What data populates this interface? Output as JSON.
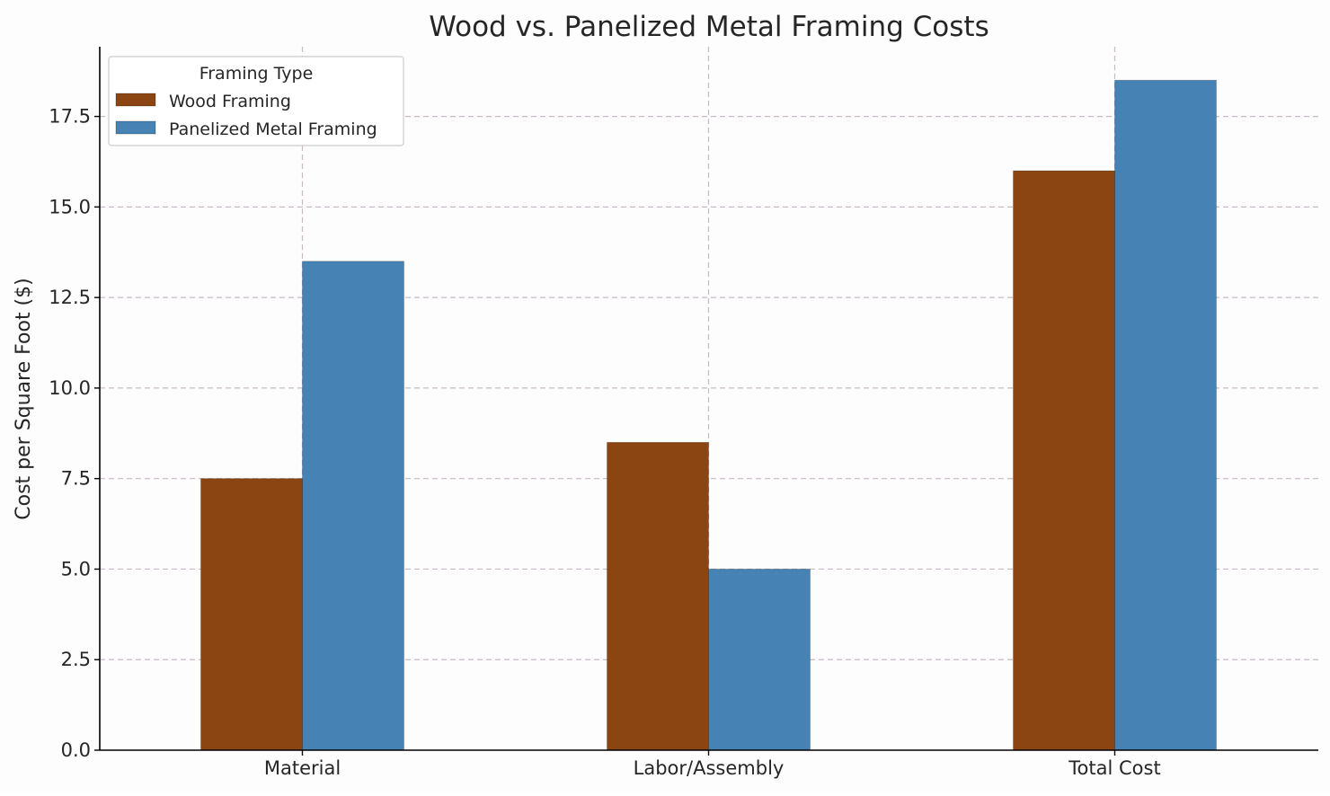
{
  "chart_data": {
    "type": "bar",
    "title": "Wood vs. Panelized Metal Framing Costs",
    "xlabel": "",
    "ylabel": "Cost per Square Foot ($)",
    "categories": [
      "Material",
      "Labor/Assembly",
      "Total Cost"
    ],
    "series": [
      {
        "name": "Wood Framing",
        "values": [
          7.5,
          8.5,
          16.0
        ],
        "color": "#8b4513"
      },
      {
        "name": "Panelized Metal Framing",
        "values": [
          13.5,
          5.0,
          18.5
        ],
        "color": "#4682b4"
      }
    ],
    "ylim": [
      0,
      19.425
    ],
    "yticks": [
      0.0,
      2.5,
      5.0,
      7.5,
      10.0,
      12.5,
      15.0,
      17.5
    ],
    "ytick_labels": [
      "0.0",
      "2.5",
      "5.0",
      "7.5",
      "10.0",
      "12.5",
      "15.0",
      "17.5"
    ],
    "grid": true,
    "legend": {
      "title": "Framing Type",
      "placement": "top-left"
    }
  }
}
